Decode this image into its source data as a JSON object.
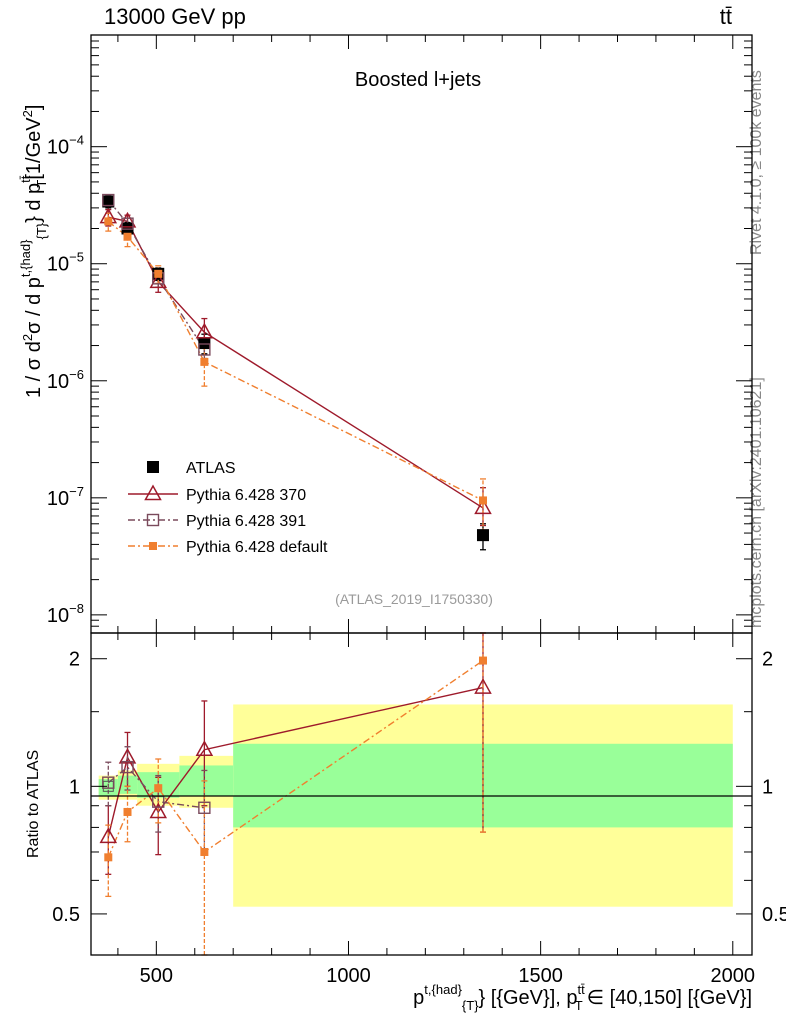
{
  "header": {
    "energy_label": "13000 GeV pp",
    "process_label": "tt̄"
  },
  "side_labels": {
    "rivet": "Rivet 4.1.0, ≥ 100k events",
    "mcplots": "mcplots.cern.ch [arXiv:2401.10621]"
  },
  "chart_data": [
    {
      "type": "scatter",
      "panel": "main",
      "title": "Boosted l+jets",
      "reference": "(ATLAS_2019_I1750330)",
      "ylabel": "1 / σ d²σ / d p_T^{t,{had}} d p_T^{t̄t}[1/GeV²]",
      "ylabel_parts": {
        "a": "1 / σ d",
        "b": "2",
        "c": "σ / d p",
        "d": "t,{had",
        "e": "}",
        "f": "{T}",
        "g": "} d p",
        "h": "tt̄",
        "i": "T",
        "j": "[1/GeV",
        "k": "2",
        "l": "]"
      },
      "xlim": [
        330,
        2050
      ],
      "ylim": [
        7e-09,
        0.0009
      ],
      "yscale": "log",
      "y_ticks": [
        {
          "v": 1e-08,
          "base": "10",
          "exp": "−8"
        },
        {
          "v": 1e-07,
          "base": "10",
          "exp": "−7"
        },
        {
          "v": 1e-06,
          "base": "10",
          "exp": "−6"
        },
        {
          "v": 1e-05,
          "base": "10",
          "exp": "−5"
        },
        {
          "v": 0.0001,
          "base": "10",
          "exp": "−4"
        }
      ],
      "legend_position": "lower-left",
      "series": [
        {
          "name": "ATLAS",
          "marker": "filled-square",
          "color": "#000000",
          "line": "none",
          "x": [
            375,
            425,
            505,
            625,
            1350
          ],
          "xerr": [
            25,
            25,
            55,
            65,
            650
          ],
          "y": [
            3.4e-05,
            2e-05,
            8.2e-06,
            2.1e-06,
            4.8e-08
          ],
          "yerr_low": [
            4e-06,
            2.5e-06,
            1e-06,
            4e-07,
            1.2e-08
          ],
          "yerr_high": [
            4e-06,
            2.5e-06,
            1e-06,
            4e-07,
            1.2e-08
          ]
        },
        {
          "name": "Pythia 6.428 370",
          "marker": "open-triangle",
          "color": "#9e1a2b",
          "line": "solid",
          "x": [
            375,
            425,
            505,
            625,
            1350
          ],
          "y": [
            2.5e-05,
            2.3e-05,
            7e-06,
            2.6e-06,
            8.2e-08
          ],
          "yerr_low": [
            4e-06,
            3e-06,
            1.3e-06,
            6e-07,
            2.4e-08
          ],
          "yerr_high": [
            4e-06,
            3e-06,
            1.3e-06,
            8e-07,
            4e-08
          ]
        },
        {
          "name": "Pythia 6.428 391",
          "marker": "open-square",
          "color": "#7a4a5c",
          "line": "dashdot",
          "x": [
            375,
            425,
            505,
            625
          ],
          "y": [
            3.5e-05,
            2.2e-05,
            7.5e-06,
            1.85e-06
          ],
          "yerr_low": [
            3e-06,
            2.5e-06,
            1.2e-06,
            3e-07
          ],
          "yerr_high": [
            3e-06,
            2.5e-06,
            1.2e-06,
            3e-07
          ]
        },
        {
          "name": "Pythia 6.428 default",
          "marker": "filled-small-square",
          "color": "#f07f2f",
          "line": "dashdot",
          "x": [
            375,
            425,
            505,
            625,
            1350
          ],
          "y": [
            2.3e-05,
            1.7e-05,
            8.2e-06,
            1.45e-06,
            9.5e-08
          ],
          "yerr_low": [
            4e-06,
            3e-06,
            1.4e-06,
            5.5e-07,
            5e-08
          ],
          "yerr_high": [
            4e-06,
            3e-06,
            1.4e-06,
            5.5e-07,
            5e-08
          ]
        }
      ]
    },
    {
      "type": "scatter",
      "panel": "ratio",
      "ylabel": "Ratio to ATLAS",
      "xlabel": "p_T^{t,{had}}_{T} [{GeV}], p_T^{tt̄} ∈ [40,150] [{GeV}]",
      "xlabel_parts": {
        "a": "p",
        "b": "t,{had",
        "c": "}",
        "d": "{T}",
        "e": "} [{GeV}], p",
        "f": "tt̄",
        "g": "T",
        "h": "∈ [40,150] [{GeV}]"
      },
      "xlim": [
        330,
        2050
      ],
      "ylim": [
        0.4,
        2.3
      ],
      "yscale": "log",
      "x_ticks": [
        "500",
        "1000",
        "1500",
        "2000"
      ],
      "x_tick_values": [
        500,
        1000,
        1500,
        2000
      ],
      "y_ticks": [
        "0.5",
        "1",
        "2"
      ],
      "y_tick_values": [
        0.5,
        1,
        2
      ],
      "uncertainty_bands": {
        "bins": [
          [
            350,
            400
          ],
          [
            400,
            450
          ],
          [
            450,
            560
          ],
          [
            560,
            700
          ],
          [
            700,
            2000
          ]
        ],
        "inner": [
          [
            0.95,
            1.04
          ],
          [
            0.96,
            1.06
          ],
          [
            0.94,
            1.08
          ],
          [
            0.95,
            1.12
          ],
          [
            0.8,
            1.26
          ]
        ],
        "outer": [
          [
            0.93,
            1.06
          ],
          [
            0.93,
            1.09
          ],
          [
            0.9,
            1.13
          ],
          [
            0.89,
            1.18
          ],
          [
            0.52,
            1.56
          ]
        ],
        "inner_color": "#99ff99",
        "outer_color": "#ffff99"
      },
      "series": [
        {
          "name": "Pythia 6.428 370",
          "marker": "open-triangle",
          "color": "#9e1a2b",
          "line": "solid",
          "x": [
            375,
            425,
            505,
            625,
            1350
          ],
          "y": [
            0.76,
            1.17,
            0.87,
            1.22,
            1.71
          ],
          "yerr_low": [
            0.14,
            0.17,
            0.18,
            0.32,
            0.93
          ],
          "yerr_high": [
            0.14,
            0.17,
            0.18,
            0.37,
            0.7
          ]
        },
        {
          "name": "Pythia 6.428 391",
          "marker": "open-square",
          "color": "#7a4a5c",
          "line": "dashdot",
          "x": [
            375,
            425,
            505,
            625
          ],
          "y": [
            1.02,
            1.11,
            0.92,
            0.89
          ],
          "yerr_low": [
            0.12,
            0.13,
            0.14,
            0.2
          ],
          "yerr_high": [
            0.12,
            0.13,
            0.14,
            0.2
          ]
        },
        {
          "name": "Pythia 6.428 default",
          "marker": "filled-small-square",
          "color": "#f07f2f",
          "line": "dashdot",
          "x": [
            375,
            425,
            505,
            625,
            1350
          ],
          "y": [
            0.68,
            0.87,
            0.99,
            0.7,
            1.98
          ],
          "yerr_low": [
            0.13,
            0.13,
            0.17,
            0.33,
            1.2
          ],
          "yerr_high": [
            0.13,
            0.13,
            0.17,
            0.33,
            0.6
          ]
        }
      ]
    }
  ]
}
